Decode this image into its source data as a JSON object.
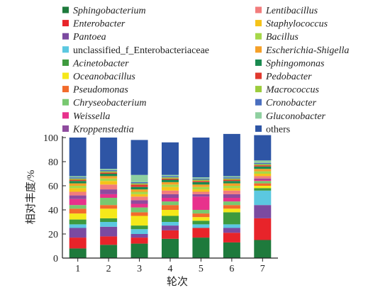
{
  "chart_data": {
    "type": "bar",
    "stacked": true,
    "orientation": "vertical",
    "categories": [
      "1",
      "2",
      "3",
      "4",
      "5",
      "6",
      "7"
    ],
    "xlabel": "轮次",
    "ylabel": "相对丰度/%",
    "ylim": [
      0,
      100
    ],
    "yticks": [
      0,
      20,
      40,
      60,
      80,
      100
    ],
    "grid": false,
    "legend_position": "top",
    "series": [
      {
        "name": "Sphingobacterium",
        "italic": true,
        "color": "#1e7a3c",
        "values": [
          8,
          11,
          12,
          16,
          17,
          13,
          15
        ]
      },
      {
        "name": "Enterobacter",
        "italic": true,
        "color": "#e8242a",
        "values": [
          9,
          7,
          5,
          7,
          8,
          8,
          18
        ]
      },
      {
        "name": "Pantoea",
        "italic": true,
        "color": "#7b4aa0",
        "values": [
          8,
          8,
          3,
          4,
          0,
          4,
          11
        ]
      },
      {
        "name": "unclassified_f_Enterobacteriaceae",
        "italic": false,
        "color": "#5bc8e0",
        "values": [
          3,
          4,
          4,
          3,
          3,
          3,
          12
        ]
      },
      {
        "name": "Acinetobacter",
        "italic": true,
        "color": "#3e9a3e",
        "values": [
          4,
          3,
          3,
          5,
          3,
          10,
          2
        ]
      },
      {
        "name": "Oceanobacillus",
        "italic": true,
        "color": "#f5e81a",
        "values": [
          5,
          8,
          8,
          5,
          3,
          3,
          2
        ]
      },
      {
        "name": "Pseudomonas",
        "italic": true,
        "color": "#f26b2c",
        "values": [
          4,
          3,
          3,
          4,
          3,
          3,
          2
        ]
      },
      {
        "name": "Chryseobacterium",
        "italic": true,
        "color": "#78c870",
        "values": [
          3,
          6,
          4,
          3,
          3,
          3,
          2
        ]
      },
      {
        "name": "Weissella",
        "italic": true,
        "color": "#e8318c",
        "values": [
          5,
          3,
          3,
          3,
          11,
          3,
          1
        ]
      },
      {
        "name": "Kroppenstedtia",
        "italic": true,
        "color": "#8e4b9e",
        "values": [
          3,
          4,
          3,
          3,
          2,
          3,
          1
        ]
      },
      {
        "name": "Lentibacillus",
        "italic": true,
        "color": "#f27c7c",
        "values": [
          3,
          4,
          3,
          3,
          2,
          3,
          2
        ]
      },
      {
        "name": "Staphylococcus",
        "italic": true,
        "color": "#f5c31a",
        "values": [
          3,
          3,
          2,
          3,
          2,
          2,
          2
        ]
      },
      {
        "name": "Bacillus",
        "italic": true,
        "color": "#a6d84a",
        "values": [
          2,
          2,
          2,
          2,
          2,
          2,
          2
        ]
      },
      {
        "name": "Escherichia-Shigella",
        "italic": true,
        "color": "#f5a028",
        "values": [
          2,
          2,
          2,
          2,
          2,
          2,
          2
        ]
      },
      {
        "name": "Sphingomonas",
        "italic": true,
        "color": "#1a8a50",
        "values": [
          2,
          2,
          2,
          2,
          2,
          2,
          2
        ]
      },
      {
        "name": "Pedobacter",
        "italic": true,
        "color": "#e0392e",
        "values": [
          1,
          1,
          2,
          1,
          1,
          1,
          1
        ]
      },
      {
        "name": "Macrococcus",
        "italic": true,
        "color": "#9ccc3c",
        "values": [
          1,
          1,
          1,
          1,
          1,
          1,
          1
        ]
      },
      {
        "name": "Cronobacter",
        "italic": true,
        "color": "#4a6fbf",
        "values": [
          1,
          1,
          1,
          1,
          1,
          1,
          1
        ]
      },
      {
        "name": "Gluconobacter",
        "italic": true,
        "color": "#8fd0a0",
        "values": [
          1,
          1,
          6,
          1,
          1,
          1,
          2
        ]
      },
      {
        "name": "others",
        "italic": false,
        "color": "#2e55a5",
        "values": [
          32,
          26,
          29,
          27,
          33,
          35,
          21
        ]
      }
    ]
  }
}
